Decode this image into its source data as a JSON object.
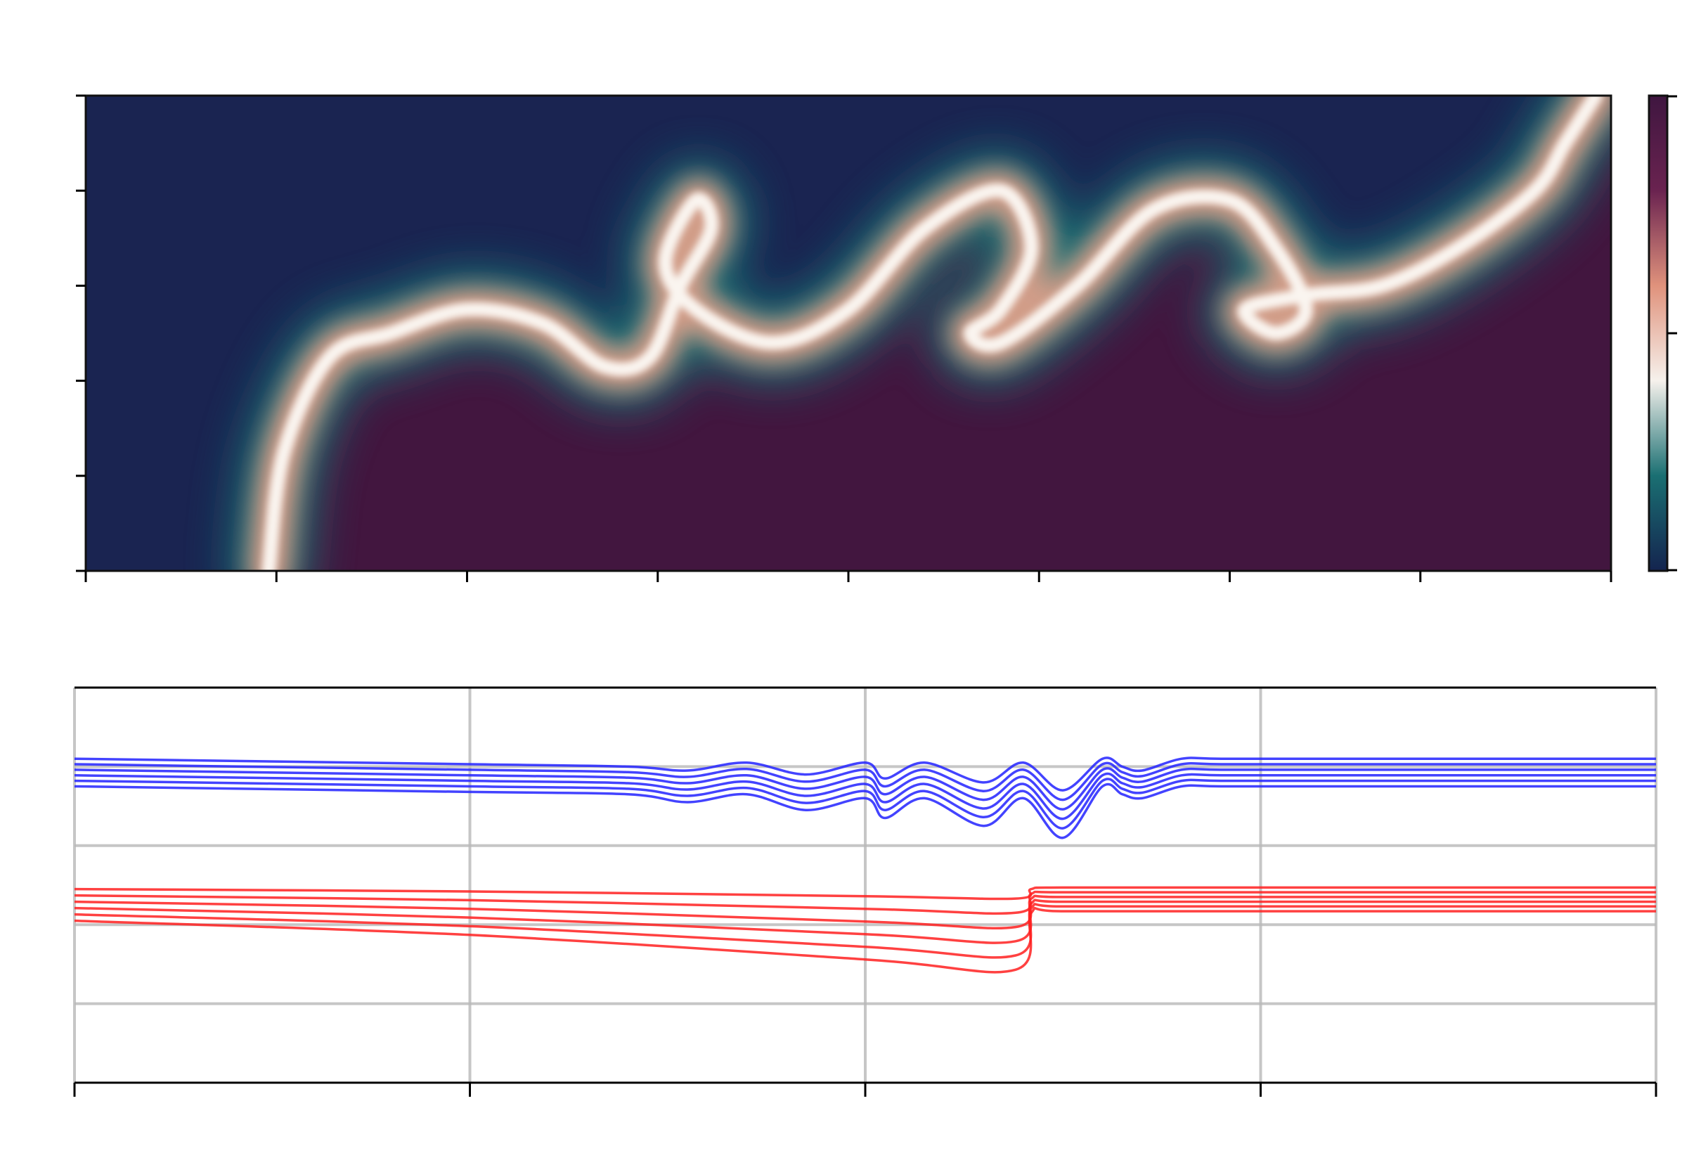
{
  "chart_data": [
    {
      "type": "heatmap",
      "title": "",
      "xlabel": "",
      "ylabel": "",
      "x_tick_count": 9,
      "y_tick_count": 6,
      "colorbar": {
        "position": "right",
        "colormap": "curl",
        "colors": [
          "#14244f",
          "#1a6f72",
          "#f6f1ec",
          "#e0927c",
          "#6a2350",
          "#3f1640"
        ]
      },
      "interface": {
        "x": [
          0.12,
          0.13,
          0.16,
          0.2,
          0.25,
          0.3,
          0.34,
          0.37,
          0.39,
          0.41,
          0.4,
          0.38,
          0.4,
          0.45,
          0.5,
          0.55,
          0.6,
          0.62,
          0.6,
          0.58,
          0.6,
          0.65,
          0.7,
          0.75,
          0.78,
          0.8,
          0.78,
          0.76,
          0.8,
          0.85,
          0.9,
          0.95,
          0.97,
          0.99
        ],
        "y": [
          0.0,
          0.25,
          0.45,
          0.5,
          0.55,
          0.52,
          0.43,
          0.45,
          0.6,
          0.72,
          0.78,
          0.65,
          0.55,
          0.48,
          0.55,
          0.72,
          0.8,
          0.68,
          0.55,
          0.5,
          0.48,
          0.6,
          0.76,
          0.78,
          0.68,
          0.55,
          0.5,
          0.55,
          0.58,
          0.6,
          0.68,
          0.8,
          0.9,
          1.0
        ]
      }
    },
    {
      "type": "line",
      "title": "",
      "xlabel": "",
      "ylabel": "",
      "grid": true,
      "xlim": [
        0,
        4
      ],
      "ylim": [
        0,
        5
      ],
      "x_ticks": [
        0,
        1,
        2,
        3,
        4
      ],
      "y_ticks": [
        0,
        1,
        2,
        3,
        4,
        5
      ],
      "series": [
        {
          "group": "blue",
          "color": "#2222ff",
          "x": [
            0,
            1,
            1.4,
            1.55,
            1.7,
            1.85,
            2.0,
            2.05,
            2.15,
            2.3,
            2.4,
            2.5,
            2.6,
            2.65,
            2.7,
            2.8,
            2.9,
            3.2,
            4
          ],
          "y": [
            4.1,
            4.03,
            4.0,
            3.95,
            4.05,
            3.9,
            4.05,
            3.85,
            4.05,
            3.8,
            4.05,
            3.7,
            4.1,
            4.0,
            3.95,
            4.1,
            4.1,
            4.1,
            4.1
          ]
        },
        {
          "group": "blue",
          "color": "#2222ff",
          "x": [
            0,
            1,
            1.4,
            1.55,
            1.7,
            1.85,
            2.0,
            2.05,
            2.15,
            2.3,
            2.4,
            2.5,
            2.6,
            2.65,
            2.7,
            2.8,
            2.9,
            3.2,
            4
          ],
          "y": [
            4.03,
            3.96,
            3.93,
            3.87,
            3.97,
            3.81,
            3.96,
            3.75,
            3.96,
            3.69,
            3.96,
            3.58,
            4.03,
            3.93,
            3.88,
            4.03,
            4.03,
            4.03,
            4.03
          ]
        },
        {
          "group": "blue",
          "color": "#2222ff",
          "x": [
            0,
            1,
            1.4,
            1.55,
            1.7,
            1.85,
            2.0,
            2.05,
            2.15,
            2.3,
            2.4,
            2.5,
            2.6,
            2.65,
            2.7,
            2.8,
            2.9,
            3.2,
            4
          ],
          "y": [
            3.96,
            3.89,
            3.86,
            3.79,
            3.89,
            3.72,
            3.87,
            3.65,
            3.87,
            3.58,
            3.87,
            3.46,
            3.96,
            3.86,
            3.81,
            3.96,
            3.96,
            3.96,
            3.96
          ]
        },
        {
          "group": "blue",
          "color": "#2222ff",
          "x": [
            0,
            1,
            1.4,
            1.55,
            1.7,
            1.85,
            2.0,
            2.05,
            2.15,
            2.3,
            2.4,
            2.5,
            2.6,
            2.65,
            2.7,
            2.8,
            2.9,
            3.2,
            4
          ],
          "y": [
            3.89,
            3.82,
            3.79,
            3.71,
            3.81,
            3.63,
            3.78,
            3.55,
            3.78,
            3.47,
            3.78,
            3.34,
            3.89,
            3.79,
            3.74,
            3.89,
            3.89,
            3.89,
            3.89
          ]
        },
        {
          "group": "blue",
          "color": "#2222ff",
          "x": [
            0,
            1,
            1.4,
            1.55,
            1.7,
            1.85,
            2.0,
            2.05,
            2.15,
            2.3,
            2.4,
            2.5,
            2.6,
            2.65,
            2.7,
            2.8,
            2.9,
            3.2,
            4
          ],
          "y": [
            3.82,
            3.75,
            3.72,
            3.63,
            3.73,
            3.54,
            3.69,
            3.45,
            3.69,
            3.36,
            3.69,
            3.22,
            3.82,
            3.72,
            3.67,
            3.82,
            3.82,
            3.82,
            3.82
          ]
        },
        {
          "group": "blue",
          "color": "#2222ff",
          "x": [
            0,
            1,
            1.4,
            1.55,
            1.7,
            1.85,
            2.0,
            2.05,
            2.15,
            2.3,
            2.4,
            2.5,
            2.6,
            2.65,
            2.7,
            2.8,
            2.9,
            3.2,
            4
          ],
          "y": [
            3.75,
            3.68,
            3.65,
            3.55,
            3.65,
            3.45,
            3.6,
            3.35,
            3.6,
            3.25,
            3.6,
            3.1,
            3.75,
            3.65,
            3.6,
            3.75,
            3.75,
            3.75,
            3.75
          ]
        },
        {
          "group": "red",
          "color": "#ff2020",
          "x": [
            0,
            1,
            2,
            2.38,
            2.42,
            2.5,
            3,
            4
          ],
          "y": [
            2.45,
            2.42,
            2.36,
            2.33,
            2.45,
            2.47,
            2.47,
            2.47
          ]
        },
        {
          "group": "red",
          "color": "#ff2020",
          "x": [
            0,
            1,
            2,
            2.38,
            2.42,
            2.5,
            3,
            4
          ],
          "y": [
            2.37,
            2.31,
            2.2,
            2.15,
            2.39,
            2.41,
            2.41,
            2.41
          ]
        },
        {
          "group": "red",
          "color": "#ff2020",
          "x": [
            0,
            1,
            2,
            2.38,
            2.42,
            2.5,
            3,
            4
          ],
          "y": [
            2.29,
            2.2,
            2.04,
            1.97,
            2.33,
            2.35,
            2.35,
            2.35
          ]
        },
        {
          "group": "red",
          "color": "#ff2020",
          "x": [
            0,
            1,
            2,
            2.38,
            2.42,
            2.5,
            3,
            4
          ],
          "y": [
            2.21,
            2.09,
            1.88,
            1.79,
            2.27,
            2.29,
            2.29,
            2.29
          ]
        },
        {
          "group": "red",
          "color": "#ff2020",
          "x": [
            0,
            1,
            2,
            2.38,
            2.42,
            2.5,
            3,
            4
          ],
          "y": [
            2.13,
            1.98,
            1.72,
            1.61,
            2.21,
            2.23,
            2.23,
            2.23
          ]
        },
        {
          "group": "red",
          "color": "#ff2020",
          "x": [
            0,
            1,
            2,
            2.38,
            2.42,
            2.5,
            3,
            4
          ],
          "y": [
            2.05,
            1.87,
            1.56,
            1.43,
            2.15,
            2.17,
            2.17,
            2.17
          ]
        }
      ]
    }
  ]
}
